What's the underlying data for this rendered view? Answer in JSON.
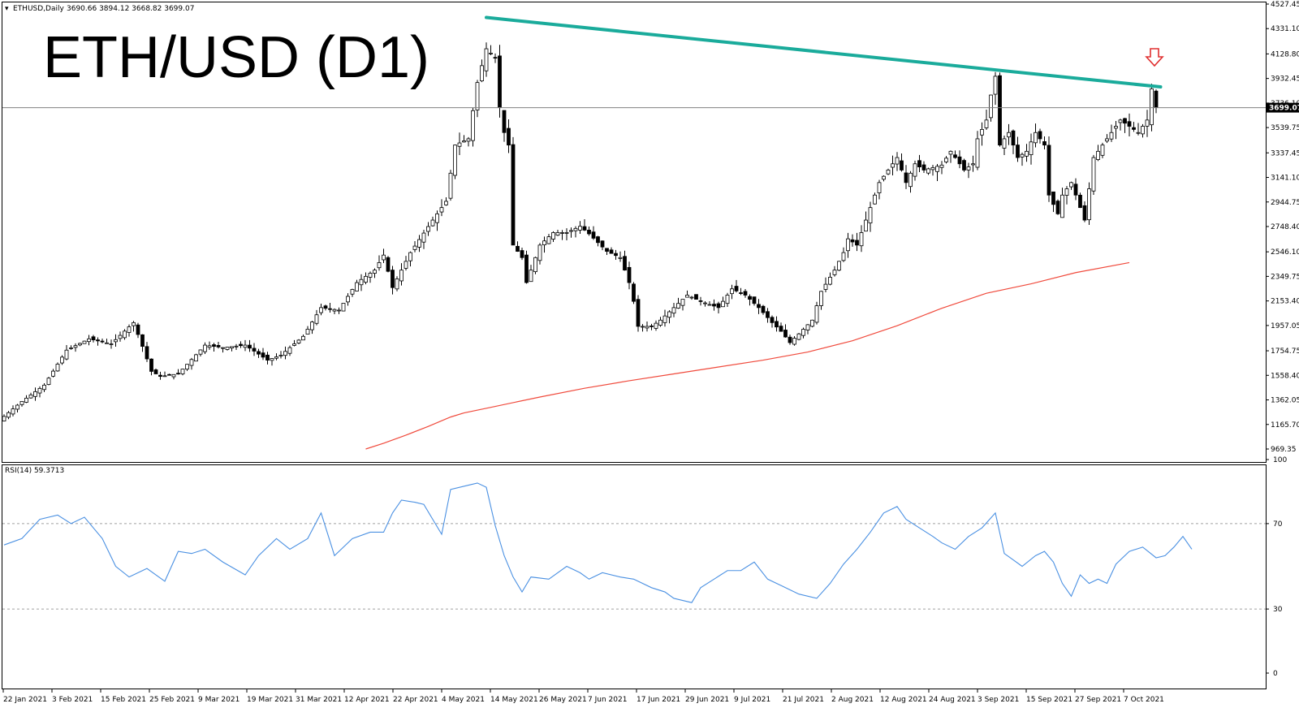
{
  "header": {
    "symbol": "ETHUSD,Daily",
    "ohlc": "3690.66 3894.12 3668.82 3699.07",
    "overlay_title": "ETH/USD (D1)"
  },
  "rsi_header": "RSI(14) 59.3713",
  "current_price_label": "3699.07",
  "colors": {
    "trendline": "#1aab9b",
    "ma_line": "#f04a3c",
    "rsi_line": "#4a90e2",
    "arrow": "#e03030",
    "candle_up_fill": "#ffffff",
    "candle_down_fill": "#000000"
  },
  "chart_data": [
    {
      "type": "candlestick",
      "title": "ETH/USD (D1)",
      "ylim": [
        969.35,
        4527.45
      ],
      "price_ticks": [
        "4527.45",
        "4331.10",
        "4128.80",
        "3932.45",
        "3736.10",
        "3539.75",
        "3337.45",
        "3141.10",
        "2944.75",
        "2748.40",
        "2546.10",
        "2349.75",
        "2153.40",
        "1957.05",
        "1754.75",
        "1558.40",
        "1362.05",
        "1165.70",
        "969.35"
      ],
      "date_ticks": [
        "22 Jan 2021",
        "3 Feb 2021",
        "15 Feb 2021",
        "25 Feb 2021",
        "9 Mar 2021",
        "19 Mar 2021",
        "31 Mar 2021",
        "12 Apr 2021",
        "22 Apr 2021",
        "4 May 2021",
        "14 May 2021",
        "26 May 2021",
        "7 Jun 2021",
        "17 Jun 2021",
        "29 Jun 2021",
        "9 Jul 2021",
        "21 Jul 2021",
        "2 Aug 2021",
        "12 Aug 2021",
        "24 Aug 2021",
        "3 Sep 2021",
        "15 Sep 2021",
        "27 Sep 2021",
        "7 Oct 2021"
      ],
      "close_anchors": [
        [
          0,
          1230
        ],
        [
          4,
          1350
        ],
        [
          9,
          1480
        ],
        [
          14,
          1760
        ],
        [
          19,
          1850
        ],
        [
          24,
          1810
        ],
        [
          29,
          1980
        ],
        [
          31,
          1790
        ],
        [
          33,
          1590
        ],
        [
          35,
          1550
        ],
        [
          39,
          1570
        ],
        [
          45,
          1800
        ],
        [
          49,
          1780
        ],
        [
          54,
          1800
        ],
        [
          59,
          1680
        ],
        [
          62,
          1720
        ],
        [
          67,
          1870
        ],
        [
          71,
          2100
        ],
        [
          75,
          2080
        ],
        [
          79,
          2300
        ],
        [
          83,
          2400
        ],
        [
          85,
          2520
        ],
        [
          87,
          2260
        ],
        [
          91,
          2540
        ],
        [
          96,
          2800
        ],
        [
          99,
          2950
        ],
        [
          101,
          3400
        ],
        [
          104,
          3450
        ],
        [
          106,
          3900
        ],
        [
          108,
          4170
        ],
        [
          110,
          4100
        ],
        [
          111,
          3700
        ],
        [
          112,
          3500
        ],
        [
          113,
          3400
        ],
        [
          114,
          2600
        ],
        [
          116,
          2500
        ],
        [
          117,
          2300
        ],
        [
          120,
          2600
        ],
        [
          123,
          2700
        ],
        [
          126,
          2700
        ],
        [
          129,
          2750
        ],
        [
          131,
          2690
        ],
        [
          135,
          2550
        ],
        [
          138,
          2500
        ],
        [
          140,
          2300
        ],
        [
          141,
          2150
        ],
        [
          142,
          1950
        ],
        [
          145,
          1950
        ],
        [
          147,
          2000
        ],
        [
          150,
          2100
        ],
        [
          153,
          2200
        ],
        [
          156,
          2150
        ],
        [
          160,
          2100
        ],
        [
          163,
          2250
        ],
        [
          166,
          2200
        ],
        [
          169,
          2100
        ],
        [
          172,
          1980
        ],
        [
          174,
          1910
        ],
        [
          176,
          1820
        ],
        [
          178,
          1890
        ],
        [
          181,
          2000
        ],
        [
          183,
          2230
        ],
        [
          186,
          2400
        ],
        [
          188,
          2540
        ],
        [
          189,
          2650
        ],
        [
          191,
          2600
        ],
        [
          194,
          2900
        ],
        [
          196,
          3100
        ],
        [
          198,
          3200
        ],
        [
          200,
          3300
        ],
        [
          202,
          3100
        ],
        [
          204,
          3250
        ],
        [
          206,
          3200
        ],
        [
          210,
          3240
        ],
        [
          212,
          3350
        ],
        [
          215,
          3200
        ],
        [
          217,
          3250
        ],
        [
          218,
          3450
        ],
        [
          220,
          3600
        ],
        [
          221,
          3800
        ],
        [
          222,
          3950
        ],
        [
          223,
          3400
        ],
        [
          225,
          3500
        ],
        [
          227,
          3300
        ],
        [
          229,
          3350
        ],
        [
          231,
          3500
        ],
        [
          233,
          3400
        ],
        [
          234,
          3000
        ],
        [
          236,
          2850
        ],
        [
          237,
          3000
        ],
        [
          239,
          3100
        ],
        [
          241,
          2900
        ],
        [
          242,
          2800
        ],
        [
          244,
          3300
        ],
        [
          246,
          3400
        ],
        [
          248,
          3500
        ],
        [
          250,
          3600
        ],
        [
          252,
          3550
        ],
        [
          254,
          3500
        ],
        [
          256,
          3600
        ],
        [
          257,
          3850
        ],
        [
          258,
          3699.07
        ]
      ],
      "series": [
        {
          "name": "Descending resistance trendline",
          "points": [
            [
              108,
              4420
            ],
            [
              259,
              3865
            ]
          ]
        },
        {
          "name": "Moving average",
          "points": [
            [
              81,
              969.35
            ],
            [
              85,
              1015
            ],
            [
              90,
              1080
            ],
            [
              95,
              1150
            ],
            [
              100,
              1225
            ],
            [
              103,
              1258
            ],
            [
              110,
              1310
            ],
            [
              120,
              1385
            ],
            [
              130,
              1455
            ],
            [
              140,
              1515
            ],
            [
              150,
              1570
            ],
            [
              160,
              1625
            ],
            [
              170,
              1680
            ],
            [
              180,
              1745
            ],
            [
              190,
              1835
            ],
            [
              200,
              1955
            ],
            [
              210,
              2095
            ],
            [
              220,
              2215
            ],
            [
              230,
              2290
            ],
            [
              240,
              2380
            ],
            [
              252,
              2460
            ]
          ]
        }
      ]
    },
    {
      "type": "line",
      "title": "RSI(14) 59.3713",
      "ylim": [
        0,
        100
      ],
      "yticks": [
        0,
        30,
        70,
        100
      ],
      "levels": [
        30,
        70
      ],
      "series": [
        {
          "name": "RSI(14)",
          "points": [
            [
              0,
              60
            ],
            [
              4,
              63
            ],
            [
              8,
              72
            ],
            [
              12,
              74
            ],
            [
              15,
              70
            ],
            [
              18,
              73
            ],
            [
              22,
              63
            ],
            [
              25,
              50
            ],
            [
              28,
              45
            ],
            [
              32,
              49
            ],
            [
              36,
              43
            ],
            [
              39,
              57
            ],
            [
              42,
              56
            ],
            [
              45,
              58
            ],
            [
              49,
              52
            ],
            [
              54,
              46
            ],
            [
              57,
              55
            ],
            [
              61,
              63
            ],
            [
              64,
              58
            ],
            [
              68,
              63
            ],
            [
              71,
              75
            ],
            [
              74,
              55
            ],
            [
              78,
              63
            ],
            [
              82,
              66
            ],
            [
              85,
              66
            ],
            [
              87,
              75
            ],
            [
              89,
              81
            ],
            [
              92,
              80
            ],
            [
              94,
              79
            ],
            [
              96,
              72
            ],
            [
              98,
              65
            ],
            [
              100,
              86
            ],
            [
              104,
              88
            ],
            [
              106,
              89
            ],
            [
              108,
              87
            ],
            [
              110,
              69
            ],
            [
              112,
              55
            ],
            [
              114,
              45
            ],
            [
              116,
              38
            ],
            [
              118,
              45
            ],
            [
              122,
              44
            ],
            [
              126,
              50
            ],
            [
              129,
              47
            ],
            [
              131,
              44
            ],
            [
              134,
              47
            ],
            [
              138,
              45
            ],
            [
              141,
              44
            ],
            [
              145,
              40
            ],
            [
              148,
              38
            ],
            [
              150,
              35
            ],
            [
              152,
              34
            ],
            [
              154,
              33
            ],
            [
              156,
              40
            ],
            [
              159,
              44
            ],
            [
              162,
              48
            ],
            [
              165,
              48
            ],
            [
              168,
              52
            ],
            [
              171,
              44
            ],
            [
              174,
              41
            ],
            [
              178,
              37
            ],
            [
              182,
              35
            ],
            [
              185,
              42
            ],
            [
              188,
              51
            ],
            [
              191,
              58
            ],
            [
              194,
              66
            ],
            [
              197,
              75
            ],
            [
              200,
              78
            ],
            [
              202,
              72
            ],
            [
              205,
              68
            ],
            [
              208,
              64
            ],
            [
              210,
              61
            ],
            [
              213,
              58
            ],
            [
              216,
              64
            ],
            [
              219,
              68
            ],
            [
              222,
              75
            ],
            [
              224,
              56
            ],
            [
              226,
              53
            ],
            [
              228,
              50
            ],
            [
              231,
              55
            ],
            [
              233,
              57
            ],
            [
              235,
              52
            ],
            [
              237,
              42
            ],
            [
              239,
              36
            ],
            [
              241,
              46
            ],
            [
              243,
              42
            ],
            [
              245,
              44
            ],
            [
              247,
              42
            ],
            [
              249,
              51
            ],
            [
              252,
              57
            ],
            [
              255,
              59
            ],
            [
              258,
              54
            ],
            [
              260,
              55
            ],
            [
              262,
              59
            ],
            [
              264,
              64
            ],
            [
              266,
              58
            ]
          ]
        }
      ]
    }
  ]
}
